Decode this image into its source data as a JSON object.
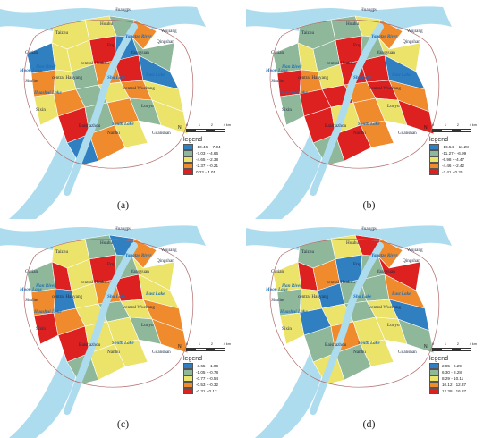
{
  "panels": [
    {
      "caption": "(a)",
      "legend": {
        "title": "legend",
        "entries": [
          {
            "label": "-10.46 - -7.04",
            "color": "#2f7fc1"
          },
          {
            "label": "-7.03 - -4.66",
            "color": "#8fb89b"
          },
          {
            "label": "-4.65 - -2.38",
            "color": "#ece36a"
          },
          {
            "label": "-2.37 - -0.21",
            "color": "#ef8a2d"
          },
          {
            "label": "0.22 - 4.01",
            "color": "#dd2020"
          }
        ]
      },
      "zone_classes": [
        2,
        2,
        1,
        3,
        0,
        2,
        2,
        4,
        0,
        1,
        3,
        2,
        1,
        3,
        4,
        0,
        2,
        3,
        1,
        2,
        3,
        2,
        4,
        1,
        3,
        1,
        2,
        0,
        3,
        2
      ]
    },
    {
      "caption": "(b)",
      "legend": {
        "title": "legend",
        "entries": [
          {
            "label": "-16.54 - -11.28",
            "color": "#2f7fc1"
          },
          {
            "label": "-11.27 - -6.99",
            "color": "#8fb89b"
          },
          {
            "label": "-6.98 - -4.47",
            "color": "#ece36a"
          },
          {
            "label": "-4.46 - -2.42",
            "color": "#ef8a2d"
          },
          {
            "label": "-2.41 - 0.25",
            "color": "#dd2020"
          }
        ]
      },
      "zone_classes": [
        1,
        1,
        2,
        3,
        1,
        2,
        1,
        4,
        1,
        2,
        4,
        3,
        2,
        4,
        4,
        0,
        1,
        4,
        4,
        3,
        4,
        3,
        4,
        2,
        3,
        2,
        4,
        1,
        4,
        3
      ]
    },
    {
      "caption": "(c)",
      "legend": {
        "title": "legend",
        "entries": [
          {
            "label": "-3.65 - -1.06",
            "color": "#2f7fc1"
          },
          {
            "label": "-1.05 - -0.78",
            "color": "#8fb89b"
          },
          {
            "label": "-0.77 - -0.54",
            "color": "#ece36a"
          },
          {
            "label": "-0.53 - -0.32",
            "color": "#ef8a2d"
          },
          {
            "label": "-0.31 - 0.12",
            "color": "#dd2020"
          }
        ]
      },
      "zone_classes": [
        2,
        1,
        0,
        3,
        1,
        4,
        2,
        4,
        1,
        2,
        3,
        0,
        2,
        3,
        4,
        2,
        4,
        3,
        2,
        1,
        2,
        3,
        4,
        2,
        2,
        1,
        3,
        1,
        2,
        2
      ]
    },
    {
      "caption": "(d)",
      "legend": {
        "title": "legend",
        "entries": [
          {
            "label": "2.85 - 6.29",
            "color": "#2f7fc1"
          },
          {
            "label": "6.30 - 8.28",
            "color": "#8fb89b"
          },
          {
            "label": "8.29 - 10.11",
            "color": "#ece36a"
          },
          {
            "label": "10.12 - 12.37",
            "color": "#ef8a2d"
          },
          {
            "label": "12.38 - 16.87",
            "color": "#dd2020"
          }
        ]
      },
      "zone_classes": [
        1,
        2,
        4,
        3,
        2,
        4,
        3,
        0,
        1,
        4,
        1,
        2,
        0,
        1,
        1,
        3,
        2,
        0,
        2,
        1,
        2,
        0,
        1,
        3,
        2,
        2,
        1,
        2,
        1,
        2
      ]
    }
  ],
  "map_labels": {
    "places": [
      "Huangpu",
      "Houhu",
      "Taizhu",
      "Erqi",
      "Qingshan",
      "Wujiang",
      "Gutian",
      "central Hankou",
      "Yangyuan",
      "Shuihe",
      "central Hanyang",
      "central Wuchang",
      "Sixin",
      "Baishazhou",
      "Nanhu",
      "Guanshan",
      "Luoyu"
    ],
    "water": [
      "Yangtze River",
      "Han River",
      "Moon Lake",
      "Sha Lake",
      "East Lake",
      "South Lake",
      "Huashui Lake"
    ]
  },
  "scale": {
    "north": "N",
    "ticks": [
      "0",
      "1",
      "2",
      "4 km"
    ]
  }
}
